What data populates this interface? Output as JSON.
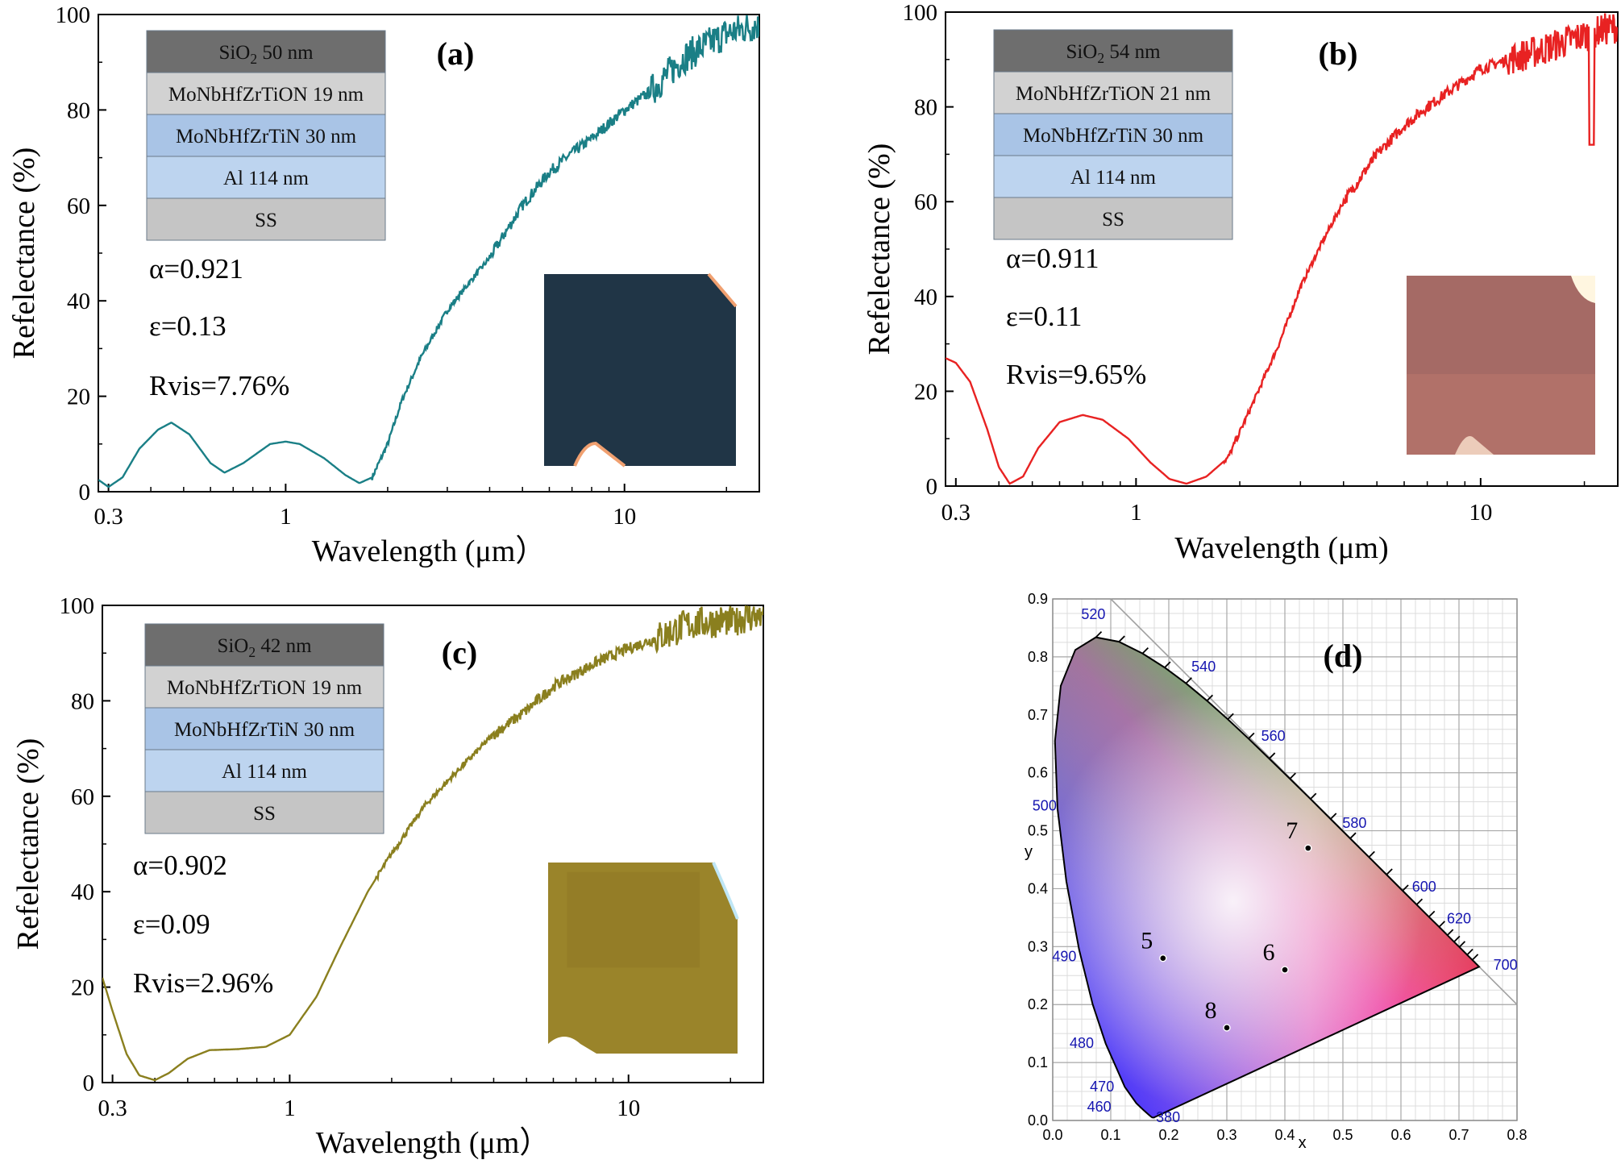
{
  "colors": {
    "panel_a_line": "#1a7f86",
    "panel_b_line": "#e82222",
    "panel_c_line": "#8a7f1e",
    "layer_sio2": "#6e6e6e",
    "layer_tion": "#d2d2d2",
    "layer_tin": "#a9c4e6",
    "layer_al": "#bdd4ef",
    "layer_ss": "#c5c5c5",
    "wavelength_label_blue": "#1515b0"
  },
  "chart_data": [
    {
      "panel": "(a)",
      "type": "line",
      "xlabel": "Wavelength (μm）",
      "ylabel": "Refelectance (%)",
      "xscale": "log",
      "xlim": [
        0.28,
        25
      ],
      "ylim": [
        0,
        100
      ],
      "xticks": [
        "0.3",
        "1",
        "10"
      ],
      "yticks": [
        "0",
        "20",
        "40",
        "60",
        "80",
        "100"
      ],
      "series": [
        {
          "points": [
            [
              0.28,
              2.5
            ],
            [
              0.3,
              1
            ],
            [
              0.33,
              3
            ],
            [
              0.37,
              9
            ],
            [
              0.42,
              13
            ],
            [
              0.46,
              14.5
            ],
            [
              0.52,
              12
            ],
            [
              0.6,
              6
            ],
            [
              0.66,
              4
            ],
            [
              0.75,
              6
            ],
            [
              0.9,
              10
            ],
            [
              1.0,
              10.5
            ],
            [
              1.1,
              10
            ],
            [
              1.3,
              7
            ],
            [
              1.5,
              3.5
            ],
            [
              1.65,
              1.8
            ],
            [
              1.8,
              3
            ],
            [
              2.0,
              10
            ],
            [
              2.2,
              19
            ],
            [
              2.5,
              28
            ],
            [
              3.0,
              38
            ],
            [
              3.5,
              44
            ],
            [
              4.0,
              49
            ],
            [
              5.0,
              60
            ],
            [
              6.0,
              67
            ],
            [
              7.0,
              71
            ],
            [
              8.0,
              74
            ],
            [
              10.0,
              80
            ],
            [
              12.0,
              84
            ],
            [
              15.0,
              91
            ],
            [
              20.0,
              96
            ],
            [
              25.0,
              98
            ]
          ],
          "noisy_from_x": 12
        }
      ],
      "stack": [
        "SiO2 50 nm",
        "MoNbHfZrTiON 19 nm",
        "MoNbHfZrTiN 30 nm",
        "Al 114 nm",
        "SS"
      ],
      "stats": [
        "α=0.921",
        "ε=0.13",
        "Rvis=7.76%"
      ],
      "photo": {
        "base": "#233a4c",
        "corner_glow": "#f0a070"
      }
    },
    {
      "panel": "(b)",
      "type": "line",
      "xlabel": "Wavelength (μm)",
      "ylabel": "Refelectance (%)",
      "xscale": "log",
      "xlim": [
        0.28,
        25
      ],
      "ylim": [
        0,
        100
      ],
      "xticks": [
        "0.3",
        "1",
        "10"
      ],
      "yticks": [
        "0",
        "20",
        "40",
        "60",
        "80",
        "100"
      ],
      "series": [
        {
          "points": [
            [
              0.28,
              27
            ],
            [
              0.3,
              26
            ],
            [
              0.33,
              22
            ],
            [
              0.37,
              12
            ],
            [
              0.4,
              4
            ],
            [
              0.43,
              0.5
            ],
            [
              0.47,
              2
            ],
            [
              0.52,
              8
            ],
            [
              0.6,
              13.5
            ],
            [
              0.7,
              15
            ],
            [
              0.8,
              14
            ],
            [
              0.95,
              10
            ],
            [
              1.1,
              5
            ],
            [
              1.25,
              1.5
            ],
            [
              1.4,
              0.5
            ],
            [
              1.6,
              2
            ],
            [
              1.85,
              6
            ],
            [
              2.2,
              18
            ],
            [
              2.6,
              30
            ],
            [
              3.0,
              42
            ],
            [
              3.5,
              52
            ],
            [
              4.0,
              60
            ],
            [
              5.0,
              70
            ],
            [
              6.0,
              76
            ],
            [
              7.0,
              80
            ],
            [
              8.0,
              83
            ],
            [
              10.0,
              88
            ],
            [
              12.0,
              90
            ],
            [
              15.0,
              92
            ],
            [
              18.0,
              94
            ],
            [
              22.0,
              96
            ],
            [
              25.0,
              97
            ]
          ],
          "noisy_from_x": 12,
          "dip": {
            "x": 21,
            "y": 72
          }
        }
      ],
      "stack": [
        "SiO2 54 nm",
        "MoNbHfZrTiON 21 nm",
        "MoNbHfZrTiN 30 nm",
        "Al 114 nm",
        "SS"
      ],
      "stats": [
        "α=0.911",
        "ε=0.11",
        "Rvis=9.65%"
      ],
      "photo": {
        "base": "#b3746e",
        "corner_glow": "#fff6e0"
      }
    },
    {
      "panel": "(c)",
      "type": "line",
      "xlabel": "Wavelength (μm）",
      "ylabel": "Refelectance (%)",
      "xscale": "log",
      "xlim": [
        0.28,
        25
      ],
      "ylim": [
        0,
        100
      ],
      "xticks": [
        "0.3",
        "1",
        "10"
      ],
      "yticks": [
        "0",
        "20",
        "40",
        "60",
        "80",
        "100"
      ],
      "series": [
        {
          "points": [
            [
              0.28,
              22
            ],
            [
              0.3,
              15
            ],
            [
              0.33,
              6
            ],
            [
              0.36,
              1.5
            ],
            [
              0.4,
              0.5
            ],
            [
              0.44,
              2
            ],
            [
              0.5,
              5
            ],
            [
              0.58,
              6.8
            ],
            [
              0.7,
              7
            ],
            [
              0.85,
              7.5
            ],
            [
              1.0,
              10
            ],
            [
              1.2,
              18
            ],
            [
              1.4,
              28
            ],
            [
              1.7,
              40
            ],
            [
              2.0,
              48
            ],
            [
              2.5,
              58
            ],
            [
              3.0,
              64
            ],
            [
              4.0,
              73
            ],
            [
              5.0,
              78
            ],
            [
              6.0,
              83
            ],
            [
              8.0,
              88
            ],
            [
              10.0,
              91
            ],
            [
              12.0,
              93
            ],
            [
              15.0,
              96
            ],
            [
              20.0,
              97
            ],
            [
              25.0,
              98
            ]
          ],
          "noisy_from_x": 12
        }
      ],
      "stack": [
        "SiO2 42 nm",
        "MoNbHfZrTiON 19 nm",
        "MoNbHfZrTiN 30 nm",
        "Al 114 nm",
        "SS"
      ],
      "stats": [
        "α=0.902",
        "ε=0.09",
        "Rvis=2.96%"
      ],
      "photo": {
        "base": "#a8902e",
        "corner_glow": "#bfe6f5"
      }
    },
    {
      "panel": "(d)",
      "type": "scatter",
      "xlabel": "x",
      "ylabel": "y",
      "xlim": [
        0,
        0.8
      ],
      "ylim": [
        0,
        0.9
      ],
      "xticks": [
        "0.0",
        "0.1",
        "0.2",
        "0.3",
        "0.4",
        "0.5",
        "0.6",
        "0.7",
        "0.8"
      ],
      "yticks": [
        "0.0",
        "0.1",
        "0.2",
        "0.3",
        "0.4",
        "0.5",
        "0.6",
        "0.7",
        "0.8",
        "0.9"
      ],
      "points": [
        {
          "label": "5",
          "x": 0.19,
          "y": 0.28
        },
        {
          "label": "6",
          "x": 0.4,
          "y": 0.26
        },
        {
          "label": "7",
          "x": 0.44,
          "y": 0.47
        },
        {
          "label": "8",
          "x": 0.3,
          "y": 0.16
        }
      ],
      "wavelength_labels": [
        "380",
        "460",
        "470",
        "480",
        "490",
        "500",
        "520",
        "540",
        "560",
        "580",
        "600",
        "620",
        "700"
      ]
    }
  ]
}
